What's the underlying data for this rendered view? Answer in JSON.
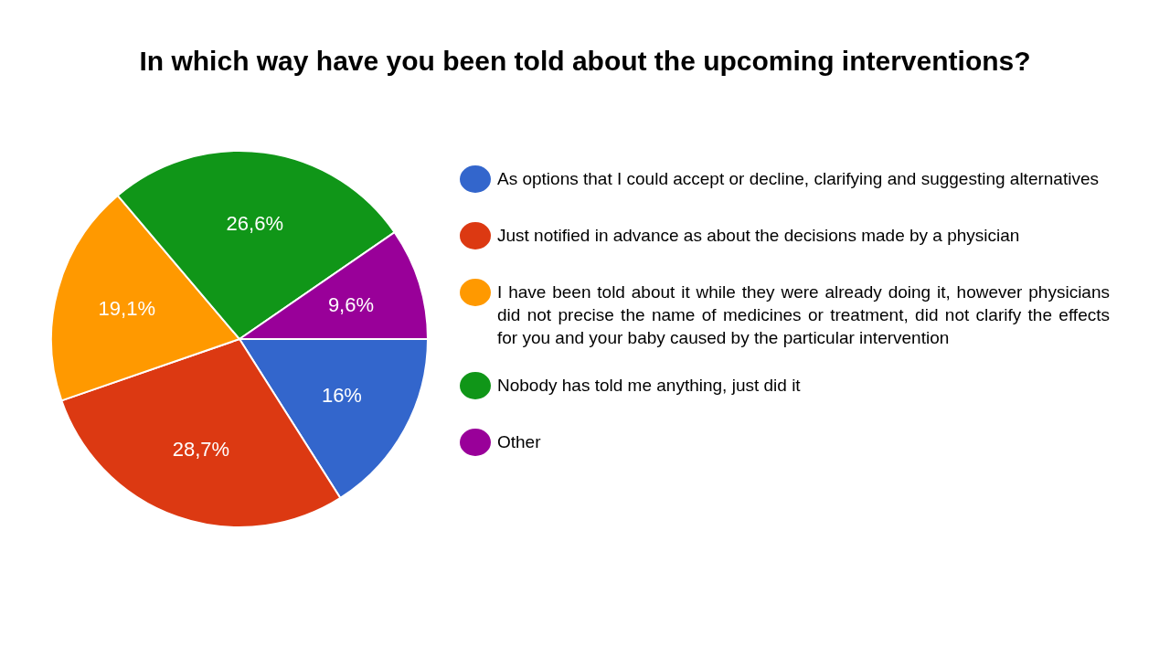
{
  "chart_data": {
    "type": "pie",
    "title": "In which way have you been told about the upcoming interventions?",
    "categories": [
      "As options that I could accept or decline, clarifying and suggesting alternatives",
      "Just notified in advance as about the decisions made by a physician",
      "I have been told about it while they were already doing it, however physicians did not precise the name of medicines or treatment, did not clarify the effects for you and your baby caused by the particular intervention",
      "Nobody has told me anything, just did it",
      "Other"
    ],
    "values": [
      16,
      28.7,
      19.1,
      26.6,
      9.6
    ],
    "value_labels": [
      "16%",
      "28,7%",
      "19,1%",
      "26,6%",
      "9,6%"
    ],
    "colors": [
      "#3366cc",
      "#dc3912",
      "#ff9900",
      "#109618",
      "#990099"
    ],
    "legend": "right"
  }
}
